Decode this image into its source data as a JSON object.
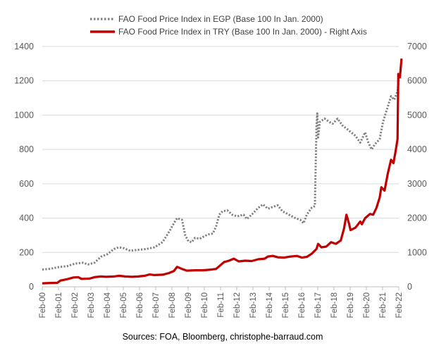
{
  "chart_data": {
    "type": "line",
    "x_categories": [
      "Feb-00",
      "Feb-01",
      "Feb-02",
      "Feb-03",
      "Feb-04",
      "Feb-05",
      "Feb-06",
      "Feb-07",
      "Feb-08",
      "Feb-09",
      "Feb-10",
      "Feb-11",
      "Feb-12",
      "Feb-13",
      "Feb-14",
      "Feb-15",
      "Feb-16",
      "Feb-17",
      "Feb-18",
      "Feb-19",
      "Feb-20",
      "Feb-21",
      "Feb-22"
    ],
    "left_axis": {
      "ylim": [
        0,
        1400
      ],
      "ticks": [
        "0",
        "200",
        "400",
        "600",
        "800",
        "1000",
        "1200",
        "1400"
      ]
    },
    "right_axis": {
      "ylim": [
        0,
        7000
      ],
      "ticks": [
        "0",
        "1000",
        "2000",
        "3000",
        "4000",
        "5000",
        "6000",
        "7000"
      ]
    },
    "grid": "horizontal",
    "legend": "top-center",
    "series": [
      {
        "name": "FAO Food Price Index in EGP (Base 100 In Jan. 2000)",
        "axis": "left",
        "style": "dotted",
        "color": "#808080",
        "points": [
          [
            2000.08,
            100
          ],
          [
            2000.6,
            105
          ],
          [
            2001.1,
            115
          ],
          [
            2001.6,
            120
          ],
          [
            2002.1,
            135
          ],
          [
            2002.6,
            140
          ],
          [
            2002.9,
            130
          ],
          [
            2003.3,
            140
          ],
          [
            2003.7,
            175
          ],
          [
            2004.1,
            190
          ],
          [
            2004.5,
            220
          ],
          [
            2004.8,
            230
          ],
          [
            2005.1,
            225
          ],
          [
            2005.5,
            210
          ],
          [
            2006.0,
            215
          ],
          [
            2006.5,
            220
          ],
          [
            2007.0,
            230
          ],
          [
            2007.5,
            260
          ],
          [
            2007.9,
            320
          ],
          [
            2008.2,
            370
          ],
          [
            2008.4,
            400
          ],
          [
            2008.7,
            390
          ],
          [
            2008.9,
            300
          ],
          [
            2009.1,
            265
          ],
          [
            2009.3,
            260
          ],
          [
            2009.5,
            285
          ],
          [
            2009.8,
            280
          ],
          [
            2010.1,
            295
          ],
          [
            2010.3,
            305
          ],
          [
            2010.6,
            310
          ],
          [
            2010.8,
            350
          ],
          [
            2011.0,
            420
          ],
          [
            2011.2,
            440
          ],
          [
            2011.5,
            445
          ],
          [
            2011.8,
            420
          ],
          [
            2012.1,
            410
          ],
          [
            2012.5,
            420
          ],
          [
            2012.7,
            395
          ],
          [
            2013.0,
            420
          ],
          [
            2013.4,
            460
          ],
          [
            2013.7,
            480
          ],
          [
            2014.0,
            455
          ],
          [
            2014.3,
            465
          ],
          [
            2014.6,
            475
          ],
          [
            2014.9,
            440
          ],
          [
            2015.3,
            420
          ],
          [
            2015.7,
            400
          ],
          [
            2016.0,
            390
          ],
          [
            2016.2,
            370
          ],
          [
            2016.4,
            420
          ],
          [
            2016.7,
            460
          ],
          [
            2016.9,
            470
          ],
          [
            2017.0,
            940
          ],
          [
            2017.05,
            1010
          ],
          [
            2017.1,
            870
          ],
          [
            2017.2,
            960
          ],
          [
            2017.5,
            980
          ],
          [
            2017.8,
            960
          ],
          [
            2018.0,
            950
          ],
          [
            2018.3,
            980
          ],
          [
            2018.6,
            940
          ],
          [
            2019.0,
            910
          ],
          [
            2019.4,
            880
          ],
          [
            2019.7,
            840
          ],
          [
            2020.0,
            900
          ],
          [
            2020.2,
            840
          ],
          [
            2020.4,
            800
          ],
          [
            2020.6,
            830
          ],
          [
            2020.9,
            860
          ],
          [
            2021.1,
            960
          ],
          [
            2021.4,
            1050
          ],
          [
            2021.6,
            1110
          ],
          [
            2021.8,
            1090
          ],
          [
            2022.0,
            1140
          ],
          [
            2022.1,
            1230
          ]
        ]
      },
      {
        "name": "FAO Food Price Index in TRY (Base 100 In Jan. 2000) - Right Axis",
        "axis": "right",
        "style": "solid",
        "color": "#c00000",
        "points": [
          [
            2000.08,
            100
          ],
          [
            2000.6,
            110
          ],
          [
            2001.0,
            115
          ],
          [
            2001.2,
            180
          ],
          [
            2001.6,
            220
          ],
          [
            2002.0,
            270
          ],
          [
            2002.3,
            280
          ],
          [
            2002.5,
            230
          ],
          [
            2003.0,
            240
          ],
          [
            2003.3,
            280
          ],
          [
            2003.7,
            300
          ],
          [
            2004.0,
            290
          ],
          [
            2004.5,
            300
          ],
          [
            2004.8,
            320
          ],
          [
            2005.2,
            300
          ],
          [
            2005.6,
            290
          ],
          [
            2006.0,
            300
          ],
          [
            2006.4,
            320
          ],
          [
            2006.7,
            360
          ],
          [
            2007.0,
            340
          ],
          [
            2007.5,
            350
          ],
          [
            2007.9,
            400
          ],
          [
            2008.2,
            460
          ],
          [
            2008.4,
            580
          ],
          [
            2008.7,
            520
          ],
          [
            2009.0,
            470
          ],
          [
            2009.5,
            480
          ],
          [
            2010.0,
            480
          ],
          [
            2010.5,
            500
          ],
          [
            2010.8,
            520
          ],
          [
            2011.0,
            600
          ],
          [
            2011.3,
            720
          ],
          [
            2011.6,
            760
          ],
          [
            2011.9,
            820
          ],
          [
            2012.2,
            740
          ],
          [
            2012.6,
            760
          ],
          [
            2013.0,
            750
          ],
          [
            2013.4,
            800
          ],
          [
            2013.8,
            820
          ],
          [
            2014.0,
            880
          ],
          [
            2014.3,
            900
          ],
          [
            2014.6,
            860
          ],
          [
            2015.0,
            850
          ],
          [
            2015.4,
            880
          ],
          [
            2015.8,
            900
          ],
          [
            2016.1,
            850
          ],
          [
            2016.4,
            870
          ],
          [
            2016.7,
            960
          ],
          [
            2017.0,
            1100
          ],
          [
            2017.1,
            1250
          ],
          [
            2017.3,
            1150
          ],
          [
            2017.6,
            1170
          ],
          [
            2017.9,
            1300
          ],
          [
            2018.2,
            1250
          ],
          [
            2018.5,
            1350
          ],
          [
            2018.7,
            1700
          ],
          [
            2018.85,
            2100
          ],
          [
            2019.0,
            1850
          ],
          [
            2019.1,
            1650
          ],
          [
            2019.4,
            1720
          ],
          [
            2019.7,
            1900
          ],
          [
            2019.8,
            1820
          ],
          [
            2020.0,
            2000
          ],
          [
            2020.3,
            2120
          ],
          [
            2020.5,
            2100
          ],
          [
            2020.7,
            2300
          ],
          [
            2020.9,
            2600
          ],
          [
            2021.0,
            2900
          ],
          [
            2021.2,
            2800
          ],
          [
            2021.4,
            3300
          ],
          [
            2021.6,
            3700
          ],
          [
            2021.75,
            3600
          ],
          [
            2021.9,
            4000
          ],
          [
            2022.0,
            4300
          ],
          [
            2022.05,
            6200
          ],
          [
            2022.15,
            6100
          ],
          [
            2022.25,
            6650
          ]
        ]
      }
    ],
    "source": "Sources: FOA, Bloomberg, christophe-barraud.com"
  }
}
